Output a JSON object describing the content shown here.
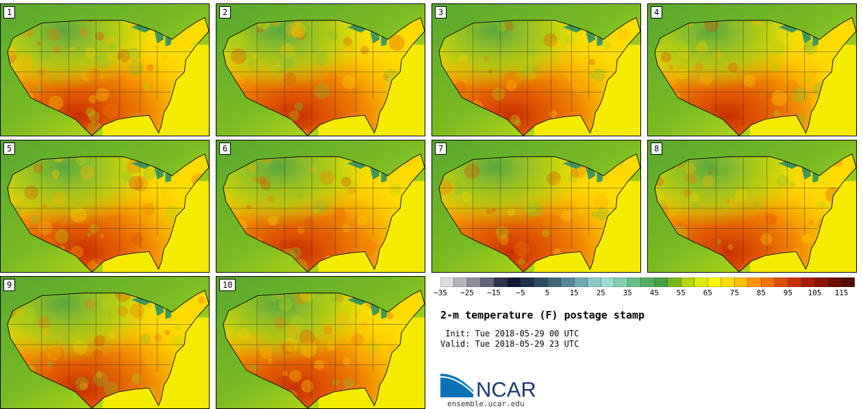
{
  "title": "2-m temperature (F) postage stamp",
  "init_line": " Init: Tue 2018-05-29 00 UTC",
  "valid_line": "Valid: Tue 2018-05-29 23 UTC",
  "logo_text": "NCAR",
  "logo_url": "ensemble.ucar.edu",
  "members": [
    "1",
    "2",
    "3",
    "4",
    "5",
    "6",
    "7",
    "8",
    "9",
    "10"
  ],
  "colorbar": {
    "min": -35,
    "max": 120,
    "step": 5,
    "tick_labels": [
      "−35",
      "−25",
      "−15",
      "−5",
      "5",
      "15",
      "25",
      "35",
      "45",
      "55",
      "65",
      "75",
      "85",
      "95",
      "105",
      "115"
    ],
    "colors": [
      "#dcdcdc",
      "#b4b4bc",
      "#8c8c9c",
      "#5f6478",
      "#2e3450",
      "#121a36",
      "#1e2e48",
      "#2e4a60",
      "#3e6678",
      "#558898",
      "#70aab4",
      "#8cc8c8",
      "#98dcd4",
      "#84d0b0",
      "#68c088",
      "#54ae5c",
      "#46a040",
      "#74b81e",
      "#b4d410",
      "#dcec0a",
      "#fcf400",
      "#fcdc00",
      "#fcbc00",
      "#fc9400",
      "#f07200",
      "#e04e00",
      "#c83000",
      "#a81c00",
      "#8c1400",
      "#6e1000",
      "#541008"
    ]
  }
}
